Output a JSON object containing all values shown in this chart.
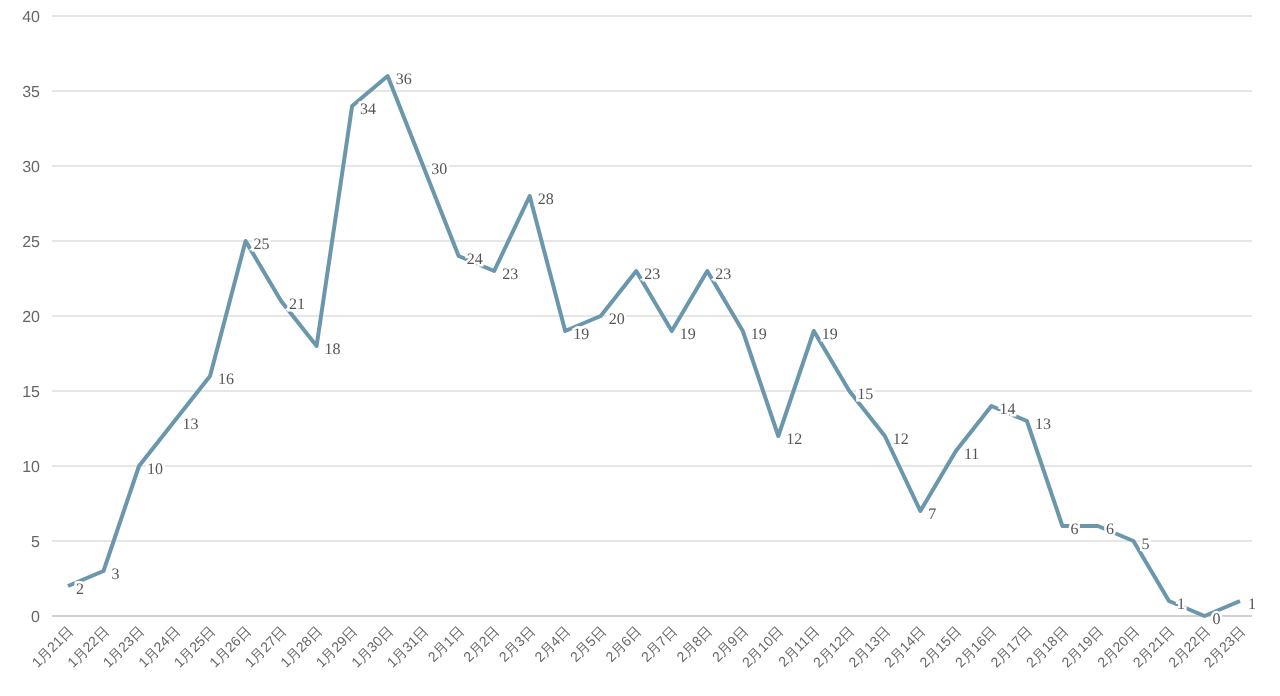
{
  "chart_data": {
    "type": "line",
    "categories": [
      "1月21日",
      "1月22日",
      "1月23日",
      "1月24日",
      "1月25日",
      "1月26日",
      "1月27日",
      "1月28日",
      "1月29日",
      "1月30日",
      "1月31日",
      "2月1日",
      "2月2日",
      "2月3日",
      "2月4日",
      "2月5日",
      "2月6日",
      "2月7日",
      "2月8日",
      "2月9日",
      "2月10日",
      "2月11日",
      "2月12日",
      "2月13日",
      "2月14日",
      "2月15日",
      "2月16日",
      "2月17日",
      "2月18日",
      "2月19日",
      "2月20日",
      "2月21日",
      "2月22日",
      "2月23日"
    ],
    "series": [
      {
        "color": "#6a97ac",
        "values": [
          2,
          3,
          10,
          13,
          16,
          25,
          21,
          18,
          34,
          36,
          30,
          24,
          23,
          28,
          19,
          20,
          23,
          19,
          23,
          19,
          12,
          19,
          15,
          12,
          7,
          11,
          14,
          13,
          6,
          6,
          5,
          1,
          0,
          1
        ]
      }
    ],
    "ylim": [
      0,
      40
    ],
    "yticks": [
      0,
      5,
      10,
      15,
      20,
      25,
      30,
      35,
      40
    ],
    "grid": "y",
    "data_labels": true,
    "marker": "none",
    "line_style": "solid"
  }
}
